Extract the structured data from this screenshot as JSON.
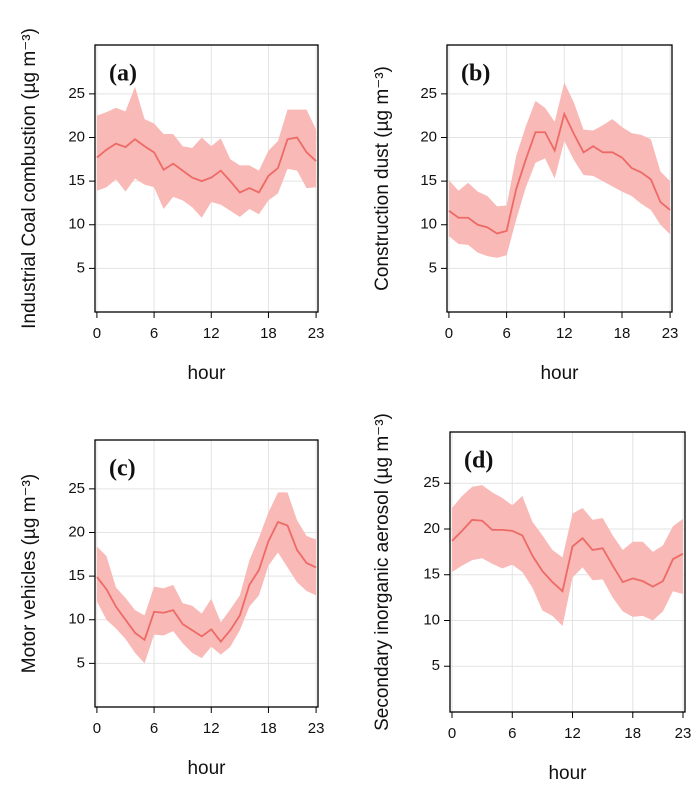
{
  "chart_data": [
    {
      "type": "line",
      "label": "(a)",
      "ylabel": "Industrial Coal combustion (µg m⁻³)",
      "xlabel": "hour",
      "x": [
        0,
        1,
        2,
        3,
        4,
        5,
        6,
        7,
        8,
        9,
        10,
        11,
        12,
        13,
        14,
        15,
        16,
        17,
        18,
        19,
        20,
        21,
        22,
        23
      ],
      "values": [
        17.7,
        18.6,
        19.3,
        18.9,
        19.8,
        19.0,
        18.3,
        16.3,
        17.0,
        16.2,
        15.4,
        15.0,
        15.4,
        16.2,
        15.0,
        13.7,
        14.2,
        13.7,
        15.6,
        16.5,
        19.8,
        20.0,
        18.3,
        17.3
      ],
      "lower": [
        13.9,
        14.3,
        15.2,
        13.8,
        15.3,
        14.6,
        14.3,
        11.8,
        13.2,
        12.8,
        12.0,
        10.8,
        12.6,
        12.3,
        11.6,
        10.9,
        11.8,
        11.2,
        12.8,
        13.6,
        16.4,
        16.2,
        14.2,
        14.3
      ],
      "upper": [
        22.5,
        22.9,
        23.4,
        23.0,
        25.8,
        22.1,
        21.6,
        20.4,
        20.4,
        19.0,
        18.8,
        20.0,
        19.0,
        19.9,
        17.5,
        16.8,
        16.8,
        16.2,
        18.5,
        19.6,
        23.2,
        23.2,
        23.2,
        20.9
      ],
      "color": "#ee6a66",
      "band_color": "#f8b9b7",
      "xlim": [
        -0.2,
        23.2
      ],
      "ylim": [
        0,
        30.6
      ],
      "xticks": [
        0,
        6,
        12,
        18,
        23
      ],
      "yticks": [
        5,
        10,
        15,
        20,
        25
      ],
      "grid": true
    },
    {
      "type": "line",
      "label": "(b)",
      "ylabel": "Construction dust (µg m⁻³)",
      "xlabel": "hour",
      "x": [
        0,
        1,
        2,
        3,
        4,
        5,
        6,
        7,
        8,
        9,
        10,
        11,
        12,
        13,
        14,
        15,
        16,
        17,
        18,
        19,
        20,
        21,
        22,
        23
      ],
      "values": [
        11.6,
        10.8,
        10.8,
        10.0,
        9.7,
        9.0,
        9.3,
        14.1,
        17.5,
        20.6,
        20.6,
        18.5,
        22.7,
        20.4,
        18.3,
        19.0,
        18.3,
        18.3,
        17.7,
        16.5,
        16.0,
        15.2,
        12.6,
        11.7
      ],
      "lower": [
        8.7,
        7.8,
        7.7,
        6.8,
        6.4,
        6.2,
        6.5,
        10.6,
        14.3,
        17.1,
        17.6,
        15.3,
        19.6,
        17.4,
        15.7,
        15.6,
        15.0,
        14.4,
        13.8,
        13.3,
        12.4,
        11.7,
        10.0,
        8.9
      ],
      "upper": [
        15.1,
        13.9,
        14.8,
        13.8,
        13.3,
        12.1,
        12.2,
        17.9,
        21.3,
        24.2,
        23.4,
        21.8,
        26.3,
        24.0,
        20.9,
        20.8,
        21.4,
        22.1,
        21.2,
        20.5,
        20.3,
        19.8,
        16.1,
        15.0
      ],
      "color": "#ee6a66",
      "band_color": "#f8b9b7",
      "xlim": [
        -0.2,
        23.2
      ],
      "ylim": [
        0,
        30.6
      ],
      "xticks": [
        0,
        6,
        12,
        18,
        23
      ],
      "yticks": [
        5,
        10,
        15,
        20,
        25
      ],
      "grid": true
    },
    {
      "type": "line",
      "label": "(c)",
      "ylabel": "Motor vehicles (µg m⁻³)",
      "xlabel": "hour",
      "x": [
        0,
        1,
        2,
        3,
        4,
        5,
        6,
        7,
        8,
        9,
        10,
        11,
        12,
        13,
        14,
        15,
        16,
        17,
        18,
        19,
        20,
        21,
        22,
        23
      ],
      "values": [
        14.9,
        13.5,
        11.5,
        10.0,
        8.5,
        7.7,
        10.9,
        10.8,
        11.1,
        9.5,
        8.8,
        8.1,
        8.9,
        7.5,
        8.8,
        10.5,
        14.0,
        15.7,
        19.0,
        21.2,
        20.8,
        18.0,
        16.5,
        16.0
      ],
      "lower": [
        12.1,
        10.0,
        9.0,
        7.8,
        6.2,
        5.0,
        8.3,
        8.2,
        8.7,
        7.3,
        6.2,
        5.6,
        6.9,
        6.0,
        6.9,
        8.8,
        11.5,
        12.8,
        16.2,
        17.7,
        16.0,
        14.3,
        13.3,
        12.8
      ],
      "upper": [
        18.4,
        17.3,
        13.7,
        12.5,
        11.1,
        10.5,
        13.8,
        13.6,
        14.0,
        11.9,
        11.6,
        10.7,
        12.4,
        9.7,
        11.2,
        12.8,
        16.8,
        19.4,
        22.3,
        24.6,
        24.6,
        21.4,
        19.6,
        19.2
      ],
      "color": "#ee6a66",
      "band_color": "#f8b9b7",
      "xlim": [
        -0.2,
        23.2
      ],
      "ylim": [
        0,
        30.6
      ],
      "xticks": [
        0,
        6,
        12,
        18,
        23
      ],
      "yticks": [
        5,
        10,
        15,
        20,
        25
      ],
      "grid": true
    },
    {
      "type": "line",
      "label": "(d)",
      "ylabel": "Secondary inorganic aerosol (µg m⁻³)",
      "xlabel": "hour",
      "x": [
        0,
        1,
        2,
        3,
        4,
        5,
        6,
        7,
        8,
        9,
        10,
        11,
        12,
        13,
        14,
        15,
        16,
        17,
        18,
        19,
        20,
        21,
        22,
        23
      ],
      "values": [
        18.7,
        19.8,
        21.0,
        20.9,
        19.9,
        19.9,
        19.8,
        19.3,
        17.1,
        15.4,
        14.2,
        13.2,
        18.1,
        19.0,
        17.7,
        17.9,
        16.0,
        14.2,
        14.6,
        14.3,
        13.7,
        14.3,
        16.7,
        17.3
      ],
      "lower": [
        15.3,
        16.0,
        16.6,
        16.8,
        16.2,
        15.7,
        16.1,
        15.3,
        13.6,
        11.1,
        10.5,
        9.4,
        14.7,
        15.8,
        14.4,
        14.5,
        12.5,
        11.0,
        10.4,
        10.5,
        10.0,
        11.0,
        13.2,
        12.9
      ],
      "upper": [
        22.3,
        23.6,
        24.6,
        24.8,
        24.0,
        23.4,
        22.6,
        23.6,
        20.8,
        19.3,
        17.7,
        16.9,
        21.7,
        22.3,
        21.0,
        21.2,
        19.3,
        17.7,
        18.6,
        18.6,
        17.5,
        18.2,
        20.3,
        21.1
      ],
      "color": "#ee6a66",
      "band_color": "#f8b9b7",
      "xlim": [
        -0.2,
        23.2
      ],
      "ylim": [
        0,
        30.6
      ],
      "xticks": [
        0,
        6,
        12,
        18,
        23
      ],
      "yticks": [
        5,
        10,
        15,
        20,
        25
      ],
      "grid": true
    }
  ]
}
